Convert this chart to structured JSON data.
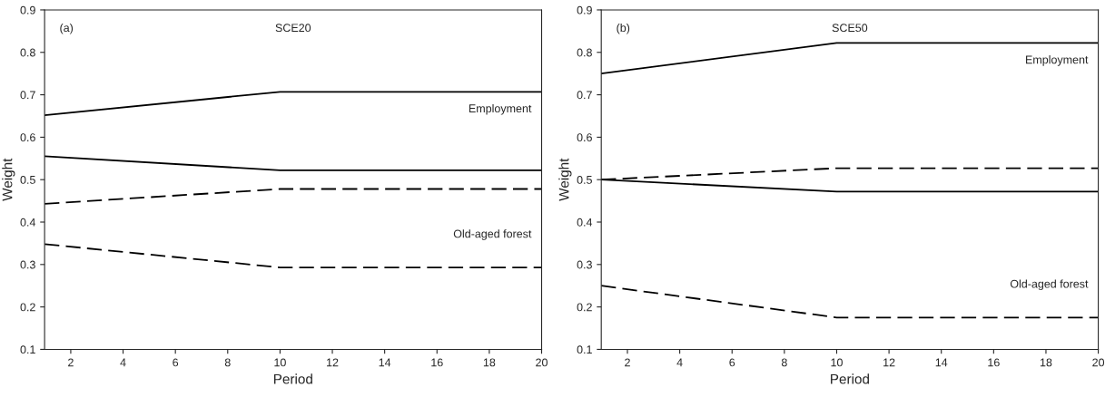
{
  "chart_data": [
    {
      "type": "line",
      "title": "SCE20",
      "xlabel": "Period",
      "ylabel": "Weight",
      "xlim": [
        1,
        20
      ],
      "ylim": [
        0.1,
        0.9
      ],
      "xticks": [
        2,
        4,
        6,
        8,
        10,
        12,
        14,
        16,
        18,
        20
      ],
      "yticks": [
        0.1,
        0.2,
        0.3,
        0.4,
        0.5,
        0.6,
        0.7,
        0.8,
        0.9
      ],
      "grid": false,
      "legend": false,
      "marker": "none",
      "series": [
        {
          "color": "#000000",
          "x": [
            1,
            10,
            20
          ],
          "values": [
            0.652,
            0.707,
            0.707
          ],
          "line_style": "solid"
        },
        {
          "color": "#000000",
          "x": [
            1,
            10,
            20
          ],
          "values": [
            0.555,
            0.522,
            0.522
          ],
          "line_style": "solid"
        },
        {
          "color": "#000000",
          "x": [
            1,
            10,
            20
          ],
          "values": [
            0.443,
            0.478,
            0.478
          ],
          "line_style": "dashed"
        },
        {
          "color": "#000000",
          "x": [
            1,
            10,
            20
          ],
          "values": [
            0.348,
            0.293,
            0.293
          ],
          "line_style": "dashed"
        }
      ],
      "annotations": [
        "(a)",
        "Employment",
        "Old-aged forest"
      ]
    },
    {
      "type": "line",
      "title": "SCE50",
      "xlabel": "Period",
      "ylabel": "Weight",
      "xlim": [
        1,
        20
      ],
      "ylim": [
        0.1,
        0.9
      ],
      "xticks": [
        2,
        4,
        6,
        8,
        10,
        12,
        14,
        16,
        18,
        20
      ],
      "yticks": [
        0.1,
        0.2,
        0.3,
        0.4,
        0.5,
        0.6,
        0.7,
        0.8,
        0.9
      ],
      "grid": false,
      "legend": false,
      "marker": "none",
      "series": [
        {
          "color": "#000000",
          "x": [
            1,
            10,
            20
          ],
          "values": [
            0.75,
            0.822,
            0.822
          ],
          "line_style": "solid"
        },
        {
          "color": "#000000",
          "x": [
            1,
            10,
            20
          ],
          "values": [
            0.5,
            0.472,
            0.472
          ],
          "line_style": "solid"
        },
        {
          "color": "#000000",
          "x": [
            1,
            10,
            20
          ],
          "values": [
            0.5,
            0.527,
            0.527
          ],
          "line_style": "dashed"
        },
        {
          "color": "#000000",
          "x": [
            1,
            10,
            20
          ],
          "values": [
            0.25,
            0.175,
            0.175
          ],
          "line_style": "dashed"
        }
      ],
      "annotations": [
        "(b)",
        "Employment",
        "Old-aged forest"
      ]
    }
  ]
}
